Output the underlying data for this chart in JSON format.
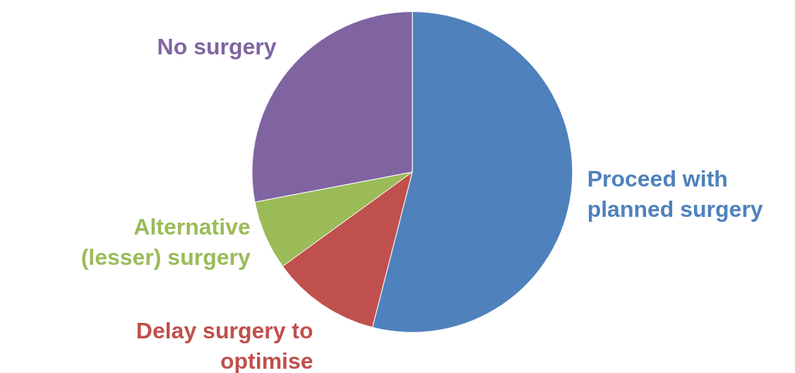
{
  "chart_data": {
    "type": "pie",
    "categories": [
      "Proceed with planned surgery",
      "Delay surgery to optimise",
      "Alternative (lesser) surgery",
      "No surgery"
    ],
    "values": [
      54,
      11,
      7,
      28
    ],
    "colors": [
      "#4f81bd",
      "#c0504d",
      "#9bbb59",
      "#8064a2"
    ]
  }
}
